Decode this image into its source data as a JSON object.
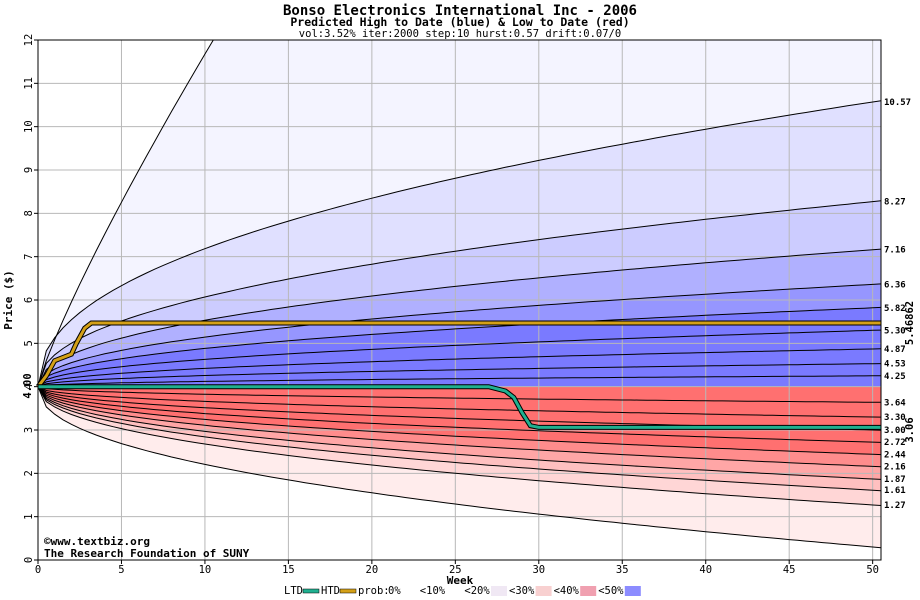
{
  "chart_data": {
    "type": "area",
    "title": "Bonso Electronics International Inc - 2006",
    "subtitle": "Predicted High to Date (blue) &  Low to Date (red)",
    "params": "vol:3.52% iter:2000 step:10 hurst:0.57 drift:0.07/0",
    "xlabel": "Week",
    "ylabel": "Price ($)",
    "xlim": [
      0,
      50.5
    ],
    "ylim": [
      0,
      12
    ],
    "x_ticks": [
      0,
      5,
      10,
      15,
      20,
      25,
      30,
      35,
      40,
      45,
      50
    ],
    "y_ticks": [
      0,
      1,
      2,
      3,
      4,
      5,
      6,
      7,
      8,
      9,
      10,
      11,
      12
    ],
    "start_price_label": "4.00",
    "start_price": 4.0,
    "high_series_end_labels": [
      "10.57",
      "8.27",
      "7.16",
      "6.36",
      "5.82",
      "5.30",
      "4.87",
      "4.53",
      "4.25"
    ],
    "high_series_end_values": [
      10.57,
      8.27,
      7.16,
      6.36,
      5.82,
      5.3,
      4.87,
      4.53,
      4.25
    ],
    "low_series_end_labels": [
      "3.64",
      "3.30",
      "3.00",
      "2.72",
      "2.44",
      "2.16",
      "1.87",
      "1.61",
      "1.27"
    ],
    "low_series_end_values": [
      3.64,
      3.3,
      3.0,
      2.72,
      2.44,
      2.16,
      1.87,
      1.61,
      1.27
    ],
    "outer_high_end": 12.0,
    "outer_low_end": 0.3,
    "htd_line": {
      "name": "HTD",
      "color": "#d4a017",
      "end_label": "5.46862",
      "points": [
        [
          0,
          4.0
        ],
        [
          0.5,
          4.25
        ],
        [
          1,
          4.6
        ],
        [
          2,
          4.75
        ],
        [
          2.3,
          5.0
        ],
        [
          2.8,
          5.35
        ],
        [
          3.2,
          5.47
        ],
        [
          50.5,
          5.47
        ]
      ]
    },
    "ltd_line": {
      "name": "LTD",
      "color": "#20b090",
      "end_label": "3.06",
      "points": [
        [
          0,
          4.0
        ],
        [
          27,
          4.0
        ],
        [
          28,
          3.9
        ],
        [
          28.5,
          3.75
        ],
        [
          29,
          3.4
        ],
        [
          29.5,
          3.1
        ],
        [
          30,
          3.06
        ],
        [
          50.5,
          3.06
        ]
      ]
    },
    "band_colors": [
      "#f4f4ff",
      "#e0e0ff",
      "#ccccff",
      "#b0b0ff",
      "#9696ff",
      "#7a7aff",
      "#ffecec",
      "#ffd6d6",
      "#ffc0c0",
      "#ffa6a6",
      "#ff8c8c",
      "#ff7070"
    ],
    "legend": {
      "ltd": "LTD",
      "htd": "HTD",
      "prob_label": "prob:",
      "levels": [
        "0%",
        "<10%",
        "<20%",
        "<30%",
        "<40%",
        "<50%"
      ],
      "level_colors": [
        "#ffffff",
        "#ffffff",
        "#f0e8f4",
        "#f8d0d0",
        "#f0a0b0",
        "#8c8cff"
      ]
    },
    "watermark_line1": "©www.textbiz.org",
    "watermark_line2": "The Research Foundation of SUNY"
  }
}
